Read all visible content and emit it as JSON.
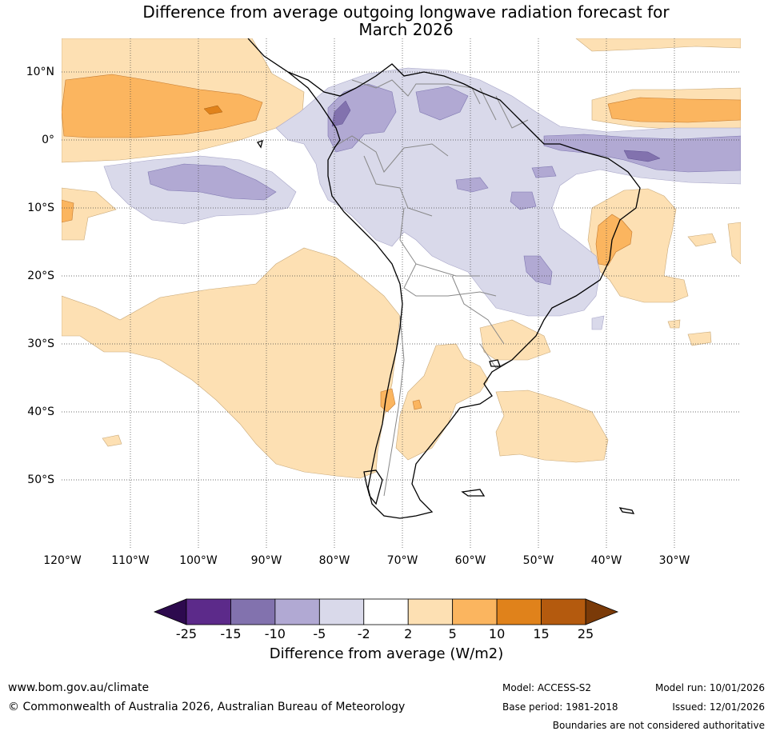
{
  "title": {
    "line1": "Difference from average outgoing longwave radiation forecast for",
    "line2": "March 2026"
  },
  "map": {
    "lat_labels": [
      "10°N",
      "0°",
      "10°S",
      "20°S",
      "30°S",
      "40°S",
      "50°S"
    ],
    "lon_labels": [
      "120°W",
      "110°W",
      "100°W",
      "90°W",
      "80°W",
      "70°W",
      "60°W",
      "50°W",
      "40°W",
      "30°W"
    ]
  },
  "colorbar": {
    "title": "Difference from average (W/m2)",
    "ticks": [
      "-25",
      "-15",
      "-10",
      "-5",
      "-2",
      "2",
      "5",
      "10",
      "15",
      "25"
    ],
    "colors": [
      "#5c2a8a",
      "#8272ae",
      "#b1a9d3",
      "#d9d9ea",
      "#ffffff",
      "#fde0b3",
      "#fbb55f",
      "#e0821b",
      "#b45a0e"
    ],
    "under_color": "#2d0a4e",
    "over_color": "#7a3a08"
  },
  "footer": {
    "website": "www.bom.gov.au/climate",
    "copyright": "© Commonwealth of Australia 2026, Australian Bureau of Meteorology",
    "model": "Model: ACCESS-S2",
    "base_period": "Base period: 1981-2018",
    "model_run": "Model run: 10/01/2026",
    "issued": "Issued: 12/01/2026",
    "disclaimer": "Boundaries are not considered authoritative"
  }
}
